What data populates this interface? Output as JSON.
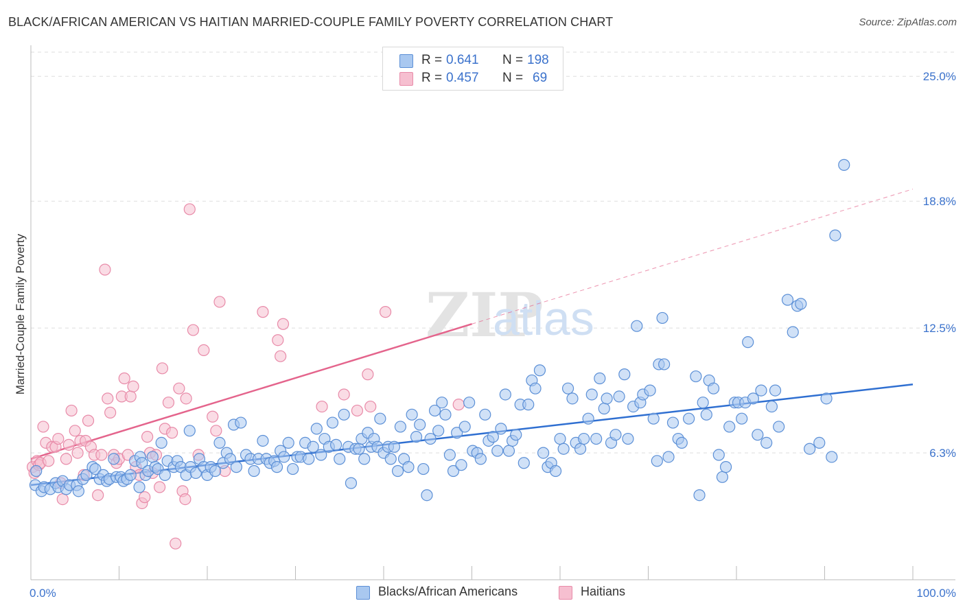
{
  "title": "BLACK/AFRICAN AMERICAN VS HAITIAN MARRIED-COUPLE FAMILY POVERTY CORRELATION CHART",
  "source": "Source: ZipAtlas.com",
  "watermark": {
    "zip": "ZIP",
    "atlas": "atlas"
  },
  "colors": {
    "blue_fill": "#a9c8f0",
    "blue_stroke": "#5b8fd6",
    "blue_line": "#2f6fd1",
    "pink_fill": "#f6bfd0",
    "pink_stroke": "#e88aa8",
    "pink_line": "#e4648c",
    "grid": "#dddddd",
    "axis_label": "#3b72cc"
  },
  "stats": {
    "blue": {
      "r_label": "R =",
      "r_value": "0.641",
      "n_label": "N =",
      "n_value": "198"
    },
    "pink": {
      "r_label": "R =",
      "r_value": "0.457",
      "n_label": "N =",
      "n_value": "69"
    }
  },
  "legend": {
    "blue": "Blacks/African Americans",
    "pink": "Haitians"
  },
  "chart_data": {
    "type": "scatter",
    "title": "BLACK/AFRICAN AMERICAN VS HAITIAN MARRIED-COUPLE FAMILY POVERTY CORRELATION CHART",
    "xlabel": "",
    "ylabel": "Married-Couple Family Poverty",
    "xlim": [
      0,
      100
    ],
    "ylim": [
      0,
      26.2
    ],
    "x_tick_labels": [
      "0.0%",
      "100.0%"
    ],
    "y_ticks": [
      6.3,
      12.5,
      18.8,
      25.0
    ],
    "y_tick_labels": [
      "6.3%",
      "12.5%",
      "18.8%",
      "25.0%"
    ],
    "grid": true,
    "legend_position": "bottom-center",
    "series": [
      {
        "name": "Blacks/African Americans",
        "color": "blue",
        "trend": {
          "x": [
            0,
            100
          ],
          "y": [
            4.7,
            9.7
          ]
        },
        "points": [
          [
            0.5,
            4.7
          ],
          [
            0.6,
            5.4
          ],
          [
            1.2,
            4.4
          ],
          [
            1.5,
            4.6
          ],
          [
            2.2,
            4.5
          ],
          [
            2.8,
            4.8
          ],
          [
            3.1,
            4.6
          ],
          [
            3.6,
            4.9
          ],
          [
            4.0,
            4.5
          ],
          [
            4.4,
            4.7
          ],
          [
            5.2,
            4.7
          ],
          [
            5.4,
            4.4
          ],
          [
            5.9,
            5.0
          ],
          [
            6.3,
            5.2
          ],
          [
            7.0,
            5.6
          ],
          [
            7.3,
            5.5
          ],
          [
            7.8,
            5.0
          ],
          [
            8.2,
            5.2
          ],
          [
            8.6,
            4.9
          ],
          [
            8.9,
            5.0
          ],
          [
            9.4,
            6.0
          ],
          [
            9.7,
            5.1
          ],
          [
            10.2,
            5.1
          ],
          [
            10.5,
            4.9
          ],
          [
            10.9,
            5.0
          ],
          [
            11.3,
            5.2
          ],
          [
            11.8,
            5.9
          ],
          [
            12.3,
            4.6
          ],
          [
            12.4,
            6.1
          ],
          [
            12.6,
            5.8
          ],
          [
            13.0,
            5.2
          ],
          [
            13.3,
            5.4
          ],
          [
            13.8,
            6.1
          ],
          [
            14.1,
            5.6
          ],
          [
            14.4,
            5.5
          ],
          [
            14.8,
            6.8
          ],
          [
            15.2,
            5.2
          ],
          [
            15.5,
            5.9
          ],
          [
            16.2,
            5.6
          ],
          [
            16.6,
            5.9
          ],
          [
            17.0,
            5.6
          ],
          [
            17.6,
            5.2
          ],
          [
            18.0,
            7.4
          ],
          [
            18.1,
            5.6
          ],
          [
            18.7,
            5.3
          ],
          [
            19.1,
            6.0
          ],
          [
            19.6,
            5.6
          ],
          [
            20.0,
            5.2
          ],
          [
            20.4,
            5.6
          ],
          [
            20.9,
            5.4
          ],
          [
            21.4,
            6.8
          ],
          [
            21.8,
            5.8
          ],
          [
            22.2,
            6.3
          ],
          [
            22.6,
            6.0
          ],
          [
            23.0,
            7.7
          ],
          [
            23.3,
            5.6
          ],
          [
            23.8,
            7.8
          ],
          [
            24.4,
            6.2
          ],
          [
            24.9,
            6.0
          ],
          [
            25.3,
            5.4
          ],
          [
            25.8,
            6.0
          ],
          [
            26.3,
            6.9
          ],
          [
            26.7,
            6.0
          ],
          [
            27.1,
            5.8
          ],
          [
            27.6,
            5.9
          ],
          [
            27.9,
            5.6
          ],
          [
            28.3,
            6.4
          ],
          [
            28.7,
            6.1
          ],
          [
            29.2,
            6.8
          ],
          [
            29.7,
            5.5
          ],
          [
            30.2,
            6.1
          ],
          [
            30.6,
            6.1
          ],
          [
            31.1,
            6.8
          ],
          [
            31.5,
            6.0
          ],
          [
            32.0,
            6.6
          ],
          [
            32.4,
            7.5
          ],
          [
            32.9,
            6.2
          ],
          [
            33.3,
            7.0
          ],
          [
            33.8,
            6.6
          ],
          [
            34.2,
            7.8
          ],
          [
            34.6,
            6.7
          ],
          [
            35.0,
            6.0
          ],
          [
            35.5,
            8.2
          ],
          [
            36.0,
            6.6
          ],
          [
            36.3,
            4.8
          ],
          [
            36.8,
            6.5
          ],
          [
            37.2,
            6.5
          ],
          [
            37.5,
            7.0
          ],
          [
            37.8,
            6.0
          ],
          [
            38.2,
            7.3
          ],
          [
            38.6,
            6.6
          ],
          [
            38.9,
            7.0
          ],
          [
            39.3,
            6.6
          ],
          [
            39.6,
            8.0
          ],
          [
            40.0,
            6.3
          ],
          [
            40.5,
            6.6
          ],
          [
            40.8,
            6.0
          ],
          [
            41.2,
            6.6
          ],
          [
            41.6,
            5.4
          ],
          [
            41.9,
            7.6
          ],
          [
            42.3,
            6.0
          ],
          [
            42.8,
            5.6
          ],
          [
            43.2,
            8.2
          ],
          [
            43.7,
            7.1
          ],
          [
            44.1,
            7.7
          ],
          [
            44.5,
            5.5
          ],
          [
            44.9,
            4.2
          ],
          [
            45.3,
            7.0
          ],
          [
            45.8,
            8.4
          ],
          [
            46.2,
            7.4
          ],
          [
            46.6,
            8.8
          ],
          [
            47.0,
            8.2
          ],
          [
            47.5,
            6.2
          ],
          [
            47.9,
            5.4
          ],
          [
            48.3,
            7.3
          ],
          [
            48.8,
            5.7
          ],
          [
            49.2,
            7.6
          ],
          [
            49.7,
            8.8
          ],
          [
            50.1,
            6.4
          ],
          [
            50.6,
            6.3
          ],
          [
            51.0,
            6.0
          ],
          [
            51.5,
            8.2
          ],
          [
            51.9,
            6.9
          ],
          [
            52.4,
            7.1
          ],
          [
            52.9,
            6.4
          ],
          [
            53.3,
            7.5
          ],
          [
            53.8,
            9.2
          ],
          [
            54.2,
            6.4
          ],
          [
            54.6,
            6.9
          ],
          [
            55.0,
            7.2
          ],
          [
            55.5,
            8.7
          ],
          [
            55.9,
            5.8
          ],
          [
            56.4,
            8.7
          ],
          [
            56.8,
            9.9
          ],
          [
            57.2,
            9.5
          ],
          [
            57.7,
            10.4
          ],
          [
            58.1,
            6.3
          ],
          [
            58.6,
            5.6
          ],
          [
            59.0,
            5.8
          ],
          [
            59.5,
            5.4
          ],
          [
            60.0,
            7.0
          ],
          [
            60.4,
            6.5
          ],
          [
            60.9,
            9.5
          ],
          [
            61.4,
            9.0
          ],
          [
            61.8,
            6.8
          ],
          [
            62.3,
            6.5
          ],
          [
            62.7,
            7.0
          ],
          [
            63.2,
            8.0
          ],
          [
            63.6,
            9.2
          ],
          [
            64.1,
            7.0
          ],
          [
            64.5,
            10.0
          ],
          [
            65.0,
            8.5
          ],
          [
            65.3,
            9.0
          ],
          [
            65.8,
            6.8
          ],
          [
            66.3,
            7.2
          ],
          [
            66.7,
            9.1
          ],
          [
            67.3,
            10.2
          ],
          [
            67.7,
            7.0
          ],
          [
            68.3,
            8.6
          ],
          [
            68.7,
            12.6
          ],
          [
            69.1,
            8.8
          ],
          [
            69.4,
            9.2
          ],
          [
            70.2,
            9.4
          ],
          [
            70.6,
            8.0
          ],
          [
            71.0,
            5.9
          ],
          [
            71.2,
            10.7
          ],
          [
            71.8,
            10.7
          ],
          [
            71.6,
            13.0
          ],
          [
            72.3,
            6.1
          ],
          [
            72.8,
            7.8
          ],
          [
            73.4,
            7.0
          ],
          [
            73.8,
            6.8
          ],
          [
            74.6,
            8.0
          ],
          [
            75.4,
            10.1
          ],
          [
            75.8,
            4.2
          ],
          [
            76.2,
            8.8
          ],
          [
            76.6,
            8.2
          ],
          [
            76.9,
            9.9
          ],
          [
            77.4,
            9.5
          ],
          [
            78.0,
            6.2
          ],
          [
            78.4,
            5.1
          ],
          [
            78.8,
            5.6
          ],
          [
            79.2,
            7.6
          ],
          [
            79.8,
            8.8
          ],
          [
            80.2,
            8.8
          ],
          [
            80.6,
            8.0
          ],
          [
            81.0,
            8.8
          ],
          [
            81.3,
            11.8
          ],
          [
            81.9,
            9.0
          ],
          [
            82.4,
            7.2
          ],
          [
            82.8,
            9.4
          ],
          [
            83.4,
            6.8
          ],
          [
            84.0,
            8.6
          ],
          [
            84.4,
            9.4
          ],
          [
            84.8,
            7.6
          ],
          [
            85.8,
            13.9
          ],
          [
            86.4,
            12.3
          ],
          [
            86.9,
            13.6
          ],
          [
            87.3,
            13.7
          ],
          [
            88.3,
            6.5
          ],
          [
            89.4,
            6.8
          ],
          [
            90.2,
            9.0
          ],
          [
            90.8,
            6.1
          ],
          [
            91.2,
            17.1
          ],
          [
            92.2,
            20.6
          ]
        ]
      },
      {
        "name": "Haitians",
        "color": "pink",
        "trend": {
          "x": [
            0,
            50
          ],
          "y": [
            6.0,
            12.7
          ]
        },
        "trend_extension": {
          "x": [
            50,
            100
          ],
          "y": [
            12.7,
            19.4
          ]
        },
        "points": [
          [
            0.2,
            5.6
          ],
          [
            0.4,
            5.3
          ],
          [
            0.7,
            5.9
          ],
          [
            0.9,
            5.7
          ],
          [
            1.1,
            5.8
          ],
          [
            1.4,
            7.6
          ],
          [
            1.7,
            6.8
          ],
          [
            2.0,
            5.9
          ],
          [
            2.4,
            6.6
          ],
          [
            2.8,
            6.6
          ],
          [
            3.1,
            7.0
          ],
          [
            3.4,
            4.8
          ],
          [
            3.6,
            4.0
          ],
          [
            4.0,
            6.0
          ],
          [
            4.3,
            6.7
          ],
          [
            4.6,
            8.4
          ],
          [
            5.0,
            7.4
          ],
          [
            5.3,
            6.3
          ],
          [
            5.6,
            6.9
          ],
          [
            6.0,
            5.2
          ],
          [
            6.2,
            6.9
          ],
          [
            6.5,
            7.9
          ],
          [
            6.8,
            6.6
          ],
          [
            7.2,
            6.2
          ],
          [
            7.6,
            4.2
          ],
          [
            8.0,
            6.2
          ],
          [
            8.4,
            15.4
          ],
          [
            8.7,
            9.0
          ],
          [
            9.0,
            8.3
          ],
          [
            9.4,
            6.2
          ],
          [
            9.7,
            5.8
          ],
          [
            10.0,
            6.0
          ],
          [
            10.3,
            9.1
          ],
          [
            10.6,
            10.0
          ],
          [
            11.0,
            6.2
          ],
          [
            11.3,
            9.1
          ],
          [
            11.6,
            9.6
          ],
          [
            11.9,
            5.6
          ],
          [
            12.3,
            5.2
          ],
          [
            12.6,
            3.8
          ],
          [
            12.9,
            4.1
          ],
          [
            13.2,
            7.1
          ],
          [
            13.5,
            6.3
          ],
          [
            13.8,
            5.3
          ],
          [
            14.2,
            6.2
          ],
          [
            14.6,
            4.6
          ],
          [
            14.9,
            10.5
          ],
          [
            15.2,
            7.5
          ],
          [
            15.6,
            8.8
          ],
          [
            16.0,
            7.3
          ],
          [
            16.4,
            1.8
          ],
          [
            16.8,
            9.5
          ],
          [
            17.2,
            4.4
          ],
          [
            17.5,
            4.0
          ],
          [
            17.6,
            9.0
          ],
          [
            18.0,
            18.4
          ],
          [
            18.4,
            12.4
          ],
          [
            19.0,
            6.2
          ],
          [
            19.6,
            11.4
          ],
          [
            20.6,
            8.1
          ],
          [
            21.0,
            7.4
          ],
          [
            21.4,
            13.8
          ],
          [
            22.0,
            5.4
          ],
          [
            26.3,
            13.3
          ],
          [
            28.0,
            11.9
          ],
          [
            28.3,
            11.1
          ],
          [
            28.6,
            12.7
          ],
          [
            33.0,
            8.6
          ],
          [
            35.5,
            9.2
          ],
          [
            37.0,
            8.4
          ],
          [
            38.2,
            10.2
          ],
          [
            38.5,
            8.6
          ],
          [
            40.2,
            13.3
          ],
          [
            48.5,
            8.7
          ]
        ]
      }
    ]
  }
}
